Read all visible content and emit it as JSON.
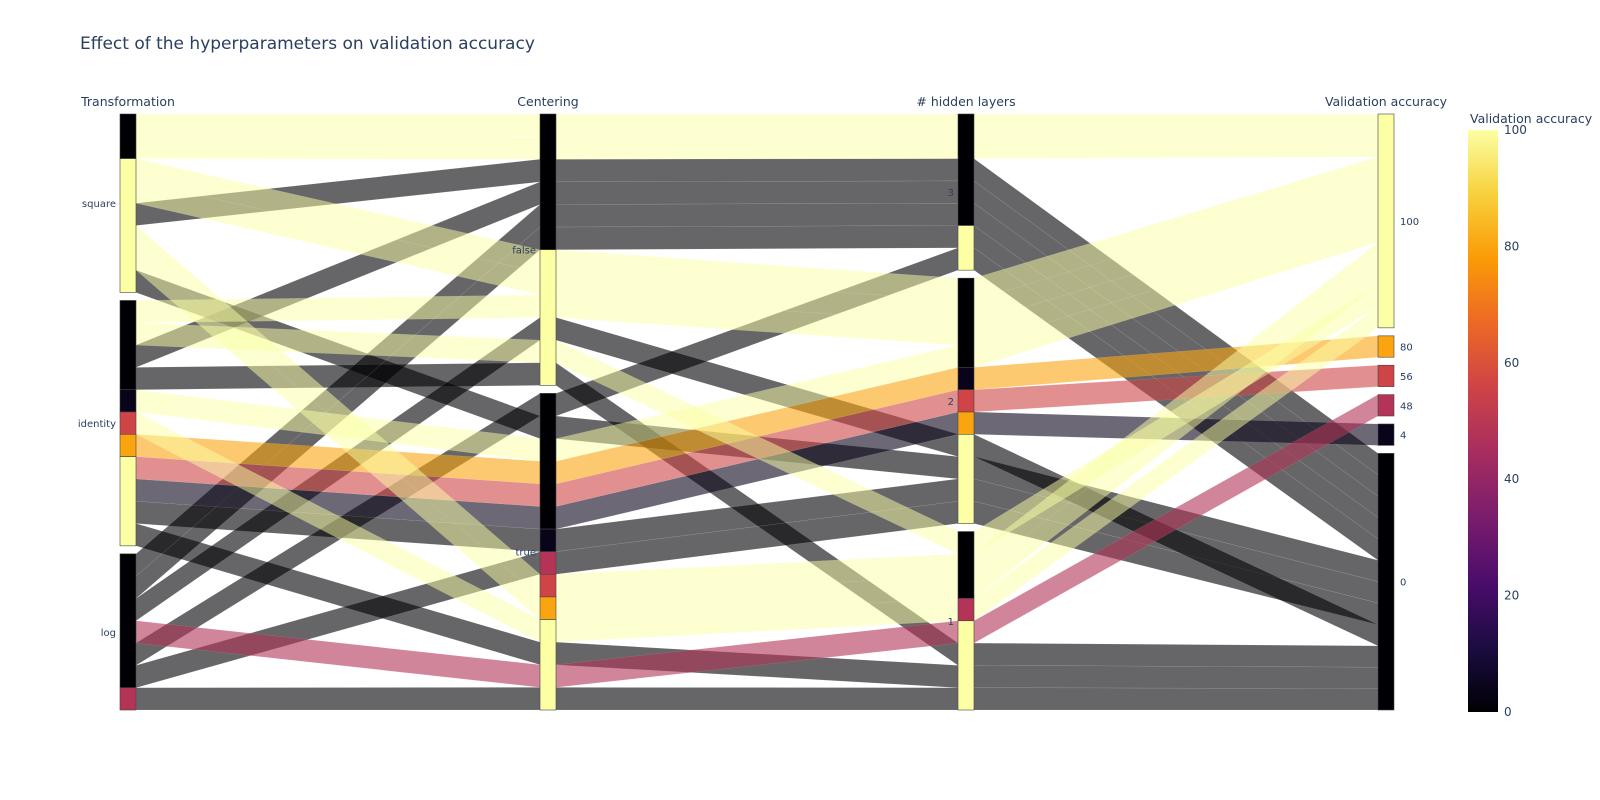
{
  "chart_data": {
    "type": "parallel_categories",
    "title": "Effect of the hyperparameters on validation accuracy",
    "dimensions": [
      {
        "label": "Transformation",
        "categories": [
          "square",
          "identity",
          "log"
        ]
      },
      {
        "label": "Centering",
        "categories": [
          "false",
          "true"
        ]
      },
      {
        "label": "# hidden layers",
        "categories": [
          "3",
          "2",
          "1"
        ]
      },
      {
        "label": "Validation accuracy",
        "categories": [
          "100",
          "80",
          "56",
          "48",
          "4",
          "0"
        ]
      }
    ],
    "colorbar": {
      "title": "Validation accuracy",
      "colorscale": "Inferno",
      "range": [
        0,
        100
      ],
      "ticks": [
        "0",
        "20",
        "40",
        "60",
        "80",
        "100"
      ]
    },
    "records": [
      {
        "t": "square",
        "c": "false",
        "h": "3",
        "acc": 0
      },
      {
        "t": "square",
        "c": "true",
        "h": "2",
        "acc": 0
      },
      {
        "t": "square",
        "c": "false",
        "h": "3",
        "acc": 100
      },
      {
        "t": "square",
        "c": "false",
        "h": "3",
        "acc": 100
      },
      {
        "t": "square",
        "c": "false",
        "h": "2",
        "acc": 100
      },
      {
        "t": "square",
        "c": "false",
        "h": "2",
        "acc": 100
      },
      {
        "t": "square",
        "c": "true",
        "h": "1",
        "acc": 100
      },
      {
        "t": "square",
        "c": "true",
        "h": "1",
        "acc": 100
      },
      {
        "t": "identity",
        "c": "false",
        "h": "3",
        "acc": 0
      },
      {
        "t": "identity",
        "c": "false",
        "h": "1",
        "acc": 0
      },
      {
        "t": "identity",
        "c": "true",
        "h": "2",
        "acc": 0
      },
      {
        "t": "identity",
        "c": "true",
        "h": "1",
        "acc": 0
      },
      {
        "t": "identity",
        "c": "false",
        "h": "2",
        "acc": 100
      },
      {
        "t": "identity",
        "c": "false",
        "h": "1",
        "acc": 100
      },
      {
        "t": "identity",
        "c": "true",
        "h": "2",
        "acc": 100
      },
      {
        "t": "identity",
        "c": "true",
        "h": "1",
        "acc": 100
      },
      {
        "t": "identity",
        "c": "true",
        "h": "2",
        "acc": 4
      },
      {
        "t": "identity",
        "c": "true",
        "h": "2",
        "acc": 56
      },
      {
        "t": "identity",
        "c": "true",
        "h": "2",
        "acc": 80
      },
      {
        "t": "log",
        "c": "false",
        "h": "3",
        "acc": 0
      },
      {
        "t": "log",
        "c": "false",
        "h": "3",
        "acc": 0
      },
      {
        "t": "log",
        "c": "true",
        "h": "3",
        "acc": 0
      },
      {
        "t": "log",
        "c": "true",
        "h": "2",
        "acc": 0
      },
      {
        "t": "log",
        "c": "false",
        "h": "2",
        "acc": 0
      },
      {
        "t": "log",
        "c": "true",
        "h": "1",
        "acc": 0
      },
      {
        "t": "log",
        "c": "true",
        "h": "1",
        "acc": 48
      }
    ]
  }
}
